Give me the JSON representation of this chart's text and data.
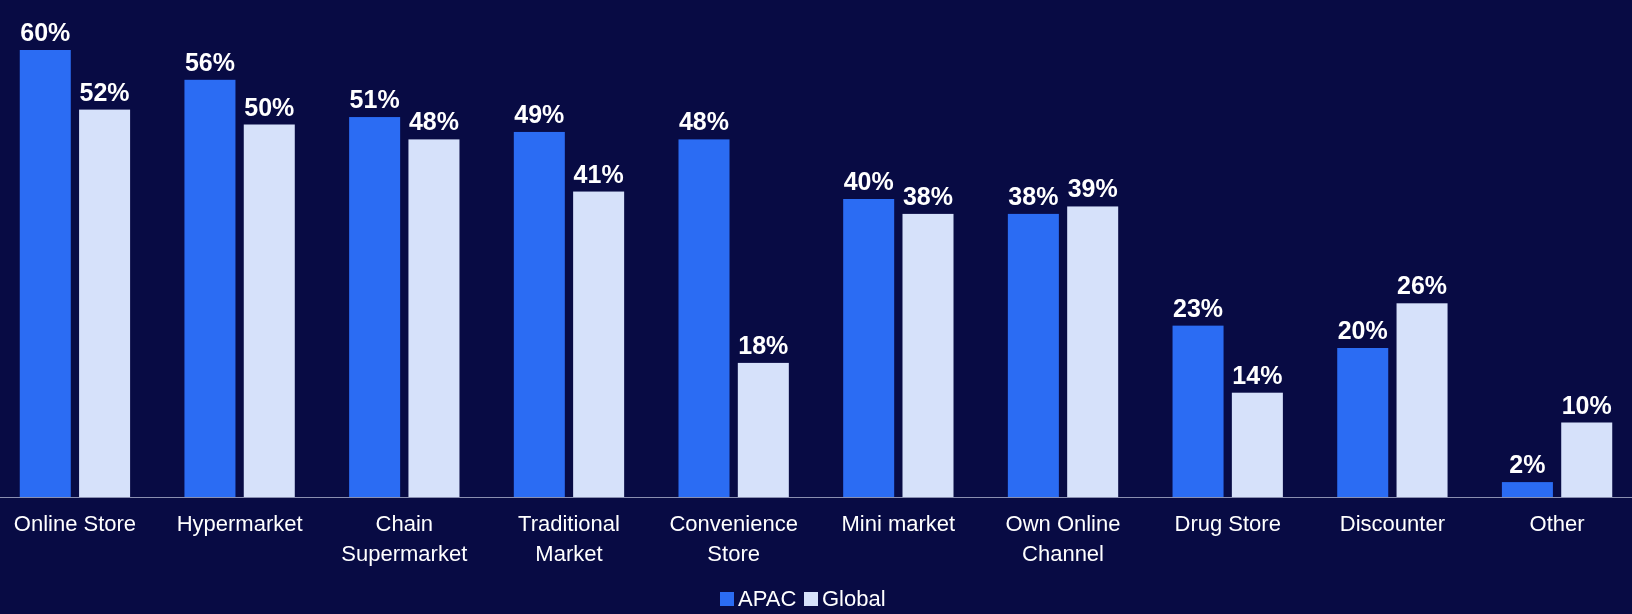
{
  "chart_data": {
    "type": "bar",
    "categories": [
      "Online Store",
      "Hypermarket",
      "Chain Supermarket",
      "Traditional Market",
      "Convenience Store",
      "Mini market",
      "Own Online Channel",
      "Drug Store",
      "Discounter",
      "Other"
    ],
    "series": [
      {
        "name": "APAC",
        "color": "#2b6cf3",
        "values": [
          60,
          56,
          51,
          49,
          48,
          40,
          38,
          23,
          20,
          2
        ],
        "value_labels": [
          "60%",
          "56%",
          "51%",
          "49%",
          "48%",
          "40%",
          "38%",
          "23%",
          "20%",
          "2%"
        ]
      },
      {
        "name": "Global",
        "color": "#d6e1fa",
        "values": [
          52,
          50,
          48,
          41,
          18,
          38,
          39,
          14,
          26,
          10
        ],
        "value_labels": [
          "52%",
          "50%",
          "48%",
          "41%",
          "18%",
          "38%",
          "39%",
          "14%",
          "26%",
          "10%"
        ]
      }
    ],
    "legend": "bottom"
  }
}
